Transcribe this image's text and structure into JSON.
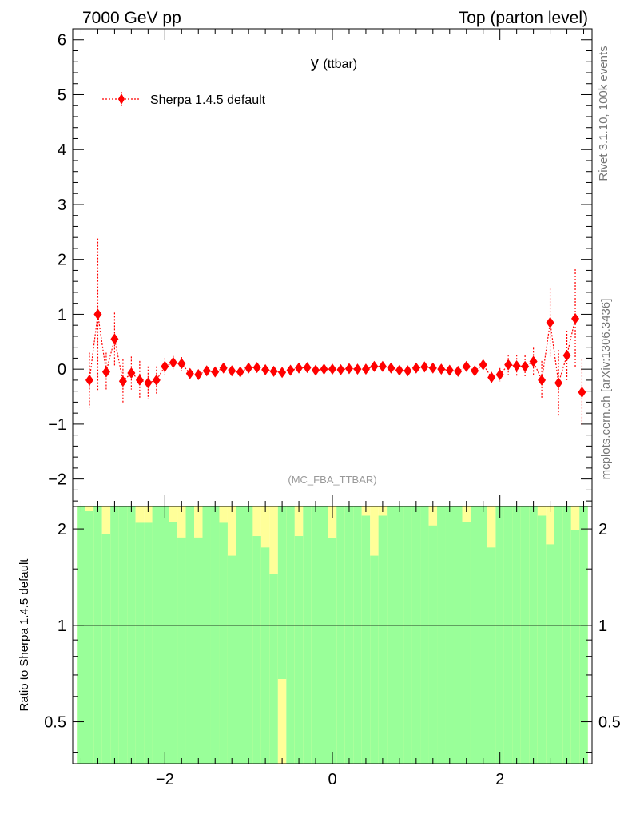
{
  "header": {
    "left": "7000 GeV pp",
    "right": "Top (parton level)"
  },
  "side_labels": {
    "rivet": "Rivet 3.1.10,  100k events",
    "mcplots": "mcplots.cern.ch [arXiv:1306.3436]"
  },
  "main_plot": {
    "title_main": "y",
    "title_sub": "(ttbar)",
    "watermark": "(MC_FBA_TTBAR)"
  },
  "ratio_plot": {
    "ylabel": "Ratio to Sherpa 1.4.5 default"
  },
  "colors": {
    "series": "#ff0000",
    "band_inner": "#99ff99",
    "band_outer": "#ffff99"
  },
  "chart_data": [
    {
      "type": "scatter",
      "xlim": [
        -3.1,
        3.1
      ],
      "ylim": [
        -2.5,
        6.2
      ],
      "yticks": [
        -2,
        -1,
        0,
        1,
        2,
        3,
        4,
        5,
        6
      ],
      "ytick_labels": [
        "−2",
        "−1",
        "0",
        "1",
        "2",
        "3",
        "4",
        "5",
        "6"
      ],
      "xticks": [
        -2,
        0,
        2
      ],
      "legend_position": "top-left",
      "series": [
        {
          "name": "Sherpa 1.4.5 default",
          "x": [
            -2.9,
            -2.8,
            -2.7,
            -2.6,
            -2.5,
            -2.4,
            -2.3,
            -2.2,
            -2.1,
            -2.0,
            -1.9,
            -1.8,
            -1.7,
            -1.6,
            -1.5,
            -1.4,
            -1.3,
            -1.2,
            -1.1,
            -1.0,
            -0.9,
            -0.8,
            -0.7,
            -0.6,
            -0.5,
            -0.4,
            -0.3,
            -0.2,
            -0.1,
            0.0,
            0.1,
            0.2,
            0.3,
            0.4,
            0.5,
            0.6,
            0.7,
            0.8,
            0.9,
            1.0,
            1.1,
            1.2,
            1.3,
            1.4,
            1.5,
            1.6,
            1.7,
            1.8,
            1.9,
            2.0,
            2.1,
            2.2,
            2.3,
            2.4,
            2.5,
            2.6,
            2.7,
            2.8,
            2.9
          ],
          "y": [
            -0.2,
            1.0,
            -0.05,
            0.55,
            -0.22,
            -0.07,
            -0.2,
            -0.25,
            -0.2,
            0.05,
            0.12,
            0.1,
            -0.08,
            -0.1,
            -0.03,
            -0.05,
            0.02,
            -0.03,
            -0.05,
            0.02,
            0.03,
            -0.01,
            -0.04,
            -0.06,
            -0.02,
            0.02,
            0.03,
            -0.02,
            0.0,
            0.0,
            -0.01,
            0.01,
            0.0,
            0.0,
            0.05,
            0.05,
            0.02,
            -0.02,
            -0.03,
            0.02,
            0.04,
            0.02,
            0.0,
            -0.02,
            -0.04,
            0.05,
            -0.03,
            0.08,
            -0.15,
            -0.1,
            0.08,
            0.06,
            0.05,
            0.14,
            -0.2,
            0.85,
            -0.25,
            0.25,
            0.92
          ],
          "yerr": [
            0.5,
            1.38,
            0.35,
            0.48,
            0.4,
            0.3,
            0.35,
            0.3,
            0.25,
            0.15,
            0.12,
            0.12,
            0.08,
            0.08,
            0.06,
            0.06,
            0.05,
            0.05,
            0.05,
            0.04,
            0.04,
            0.04,
            0.04,
            0.04,
            0.04,
            0.04,
            0.04,
            0.04,
            0.04,
            0.04,
            0.04,
            0.04,
            0.04,
            0.04,
            0.04,
            0.04,
            0.04,
            0.04,
            0.04,
            0.04,
            0.04,
            0.04,
            0.04,
            0.04,
            0.04,
            0.05,
            0.05,
            0.06,
            0.1,
            0.12,
            0.18,
            0.2,
            0.2,
            0.25,
            0.35,
            0.62,
            0.6,
            0.45,
            0.9
          ]
        },
        {
          "name": "",
          "x": [
            2.98
          ],
          "y": [
            -0.42
          ],
          "yerr": [
            0.6
          ]
        }
      ]
    },
    {
      "type": "bar",
      "yscale": "log",
      "xlim": [
        -3.1,
        3.1
      ],
      "ylim": [
        0.37,
        2.35
      ],
      "yticks": [
        0.5,
        1,
        2
      ],
      "ytick_labels": [
        "0.5",
        "1",
        "2"
      ],
      "xticks": [
        -2,
        0,
        2
      ],
      "xtick_labels": [
        "−2",
        "0",
        "2"
      ],
      "reference_line": 1,
      "band_inner": {
        "low": 0.37,
        "high": 2.35
      },
      "bins": [
        -3.0,
        -2.9,
        -2.8,
        -2.7,
        -2.6,
        -2.5,
        -2.4,
        -2.3,
        -2.2,
        -2.1,
        -2.0,
        -1.9,
        -1.8,
        -1.7,
        -1.6,
        -1.5,
        -1.4,
        -1.3,
        -1.2,
        -1.1,
        -1.0,
        -0.9,
        -0.8,
        -0.7,
        -0.6,
        -0.5,
        -0.4,
        -0.3,
        -0.2,
        -0.1,
        0.0,
        0.1,
        0.2,
        0.3,
        0.4,
        0.5,
        0.6,
        0.7,
        0.8,
        0.9,
        1.0,
        1.1,
        1.2,
        1.3,
        1.4,
        1.5,
        1.6,
        1.7,
        1.8,
        1.9,
        2.0,
        2.1,
        2.2,
        2.3,
        2.4,
        2.5,
        2.6,
        2.7,
        2.8,
        2.9,
        3.0
      ],
      "band_outer_upper_edge": [
        2.35,
        2.27,
        2.35,
        1.93,
        2.35,
        2.35,
        2.35,
        2.09,
        2.09,
        2.35,
        2.35,
        2.1,
        1.88,
        2.35,
        1.88,
        2.35,
        2.35,
        2.09,
        1.65,
        2.35,
        2.35,
        1.9,
        1.75,
        1.45,
        2.35,
        2.35,
        1.9,
        2.35,
        2.35,
        2.35,
        1.87,
        2.35,
        2.35,
        2.35,
        2.2,
        1.65,
        2.2,
        2.35,
        2.35,
        2.35,
        2.35,
        2.35,
        2.05,
        2.35,
        2.35,
        2.35,
        2.1,
        2.35,
        2.35,
        1.75,
        2.35,
        2.35,
        2.35,
        2.35,
        2.35,
        2.2,
        1.79,
        2.35,
        2.35,
        1.98,
        2.35
      ],
      "band_outer_lower_edge": [
        0.37,
        0.37,
        0.37,
        0.37,
        0.37,
        0.37,
        0.37,
        0.37,
        0.37,
        0.37,
        0.37,
        0.37,
        0.37,
        0.37,
        0.37,
        0.37,
        0.37,
        0.37,
        0.37,
        0.37,
        0.37,
        0.37,
        0.37,
        0.37,
        0.68,
        0.37,
        0.37,
        0.37,
        0.37,
        0.37,
        0.37,
        0.37,
        0.37,
        0.37,
        0.37,
        0.37,
        0.37,
        0.37,
        0.37,
        0.37,
        0.37,
        0.37,
        0.37,
        0.37,
        0.37,
        0.37,
        0.37,
        0.37,
        0.37,
        0.37,
        0.37,
        0.37,
        0.37,
        0.37,
        0.37,
        0.37,
        0.37,
        0.37,
        0.37,
        0.37,
        0.37
      ]
    }
  ]
}
